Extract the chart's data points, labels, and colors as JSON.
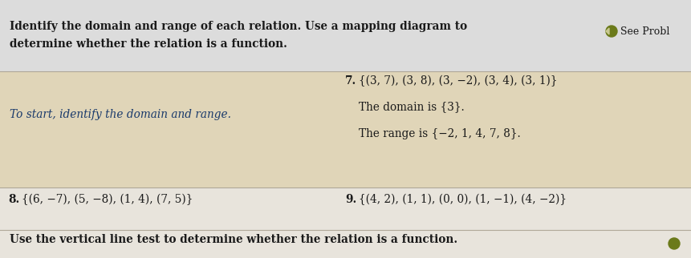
{
  "bg_color": "#e8e4dc",
  "header_bg": "#dcdcdc",
  "highlight_bg": "#e0d5b8",
  "text_color": "#1a1a1a",
  "blue_text": "#1a3a6b",
  "arrow_color": "#6b7a1a",
  "header_text_line1": "Identify the domain and range of each relation. Use a mapping diagram to",
  "header_text_line2": "determine whether the relation is a function.",
  "see_prob_text": "See Probl",
  "hint_text": "To start, identify the domain and range.",
  "p7_label": "7.",
  "p7_text": "{(3, 7), (3, 8), (3, −2), (3, 4), (3, 1)}",
  "domain_text": "The domain is {3}.",
  "range_text": "The range is {−2, 1, 4, 7, 8}.",
  "p8_label": "8.",
  "p8_text": "{(6, −7), (5, −8), (1, 4), (7, 5)}",
  "p9_label": "9.",
  "p9_text": "{(4, 2), (1, 1), (0, 0), (1, −1), (4, −2)}",
  "footer_text": "Use the vertical line test to determine whether the relation is a function.",
  "divider_color": "#b0a898",
  "font_size": 9.8,
  "font_size_small": 9.0
}
